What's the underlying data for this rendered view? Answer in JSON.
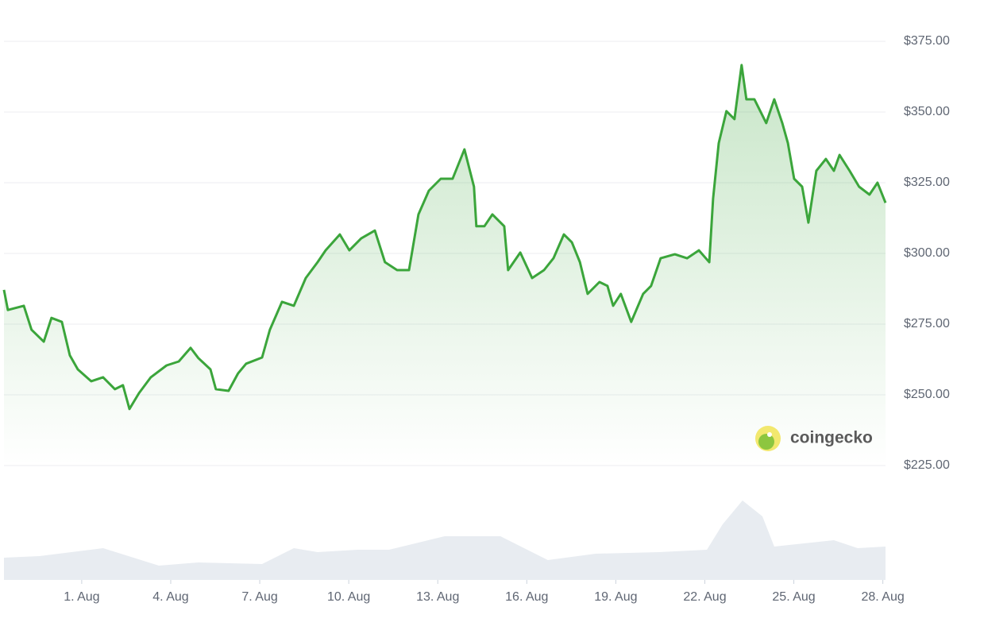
{
  "chart_data": {
    "type": "area",
    "series": [
      {
        "name": "price",
        "color": "#3ba53b",
        "x": [
          -1.62,
          -1.49,
          -0.95,
          -0.69,
          -0.28,
          -0.02,
          0.33,
          0.6,
          0.87,
          1.32,
          1.72,
          2.12,
          2.39,
          2.61,
          2.93,
          3.33,
          3.86,
          4.27,
          4.67,
          4.93,
          5.34,
          5.52,
          5.95,
          6.27,
          6.54,
          7.08,
          7.34,
          7.75,
          8.15,
          8.55,
          8.95,
          9.22,
          9.7,
          10.02,
          10.42,
          10.88,
          11.22,
          11.63,
          12.03,
          12.35,
          12.7,
          13.1,
          13.5,
          13.9,
          14.22,
          14.3,
          14.57,
          14.84,
          15.24,
          15.37,
          15.78,
          16.18,
          16.58,
          16.9,
          17.25,
          17.52,
          17.79,
          18.05,
          18.45,
          18.72,
          18.91,
          19.17,
          19.52,
          19.92,
          20.19,
          20.51,
          20.99,
          21.4,
          21.8,
          22.15,
          22.28,
          22.47,
          22.73,
          23.0,
          23.24,
          23.4,
          23.67,
          24.07,
          24.34,
          24.61,
          24.8,
          25.01,
          25.28,
          25.49,
          25.76,
          26.08,
          26.35,
          26.54,
          26.88,
          27.2,
          27.55,
          27.82,
          28.09
        ],
        "values": [
          287.1,
          280,
          281.5,
          273,
          268.8,
          277.2,
          275.8,
          264,
          259,
          254.8,
          256.2,
          252,
          253.4,
          245,
          250.6,
          256.2,
          260.4,
          261.8,
          266.6,
          263,
          259,
          252,
          251.4,
          257.6,
          261,
          263.2,
          273,
          282.9,
          281.5,
          291.3,
          296.9,
          301.1,
          306.7,
          301.1,
          305.3,
          308.1,
          296.9,
          294.1,
          294.1,
          313.8,
          322.2,
          326.4,
          326.4,
          336.8,
          323.6,
          309.6,
          309.6,
          313.8,
          309.6,
          294.1,
          300.3,
          291.3,
          294.1,
          298.3,
          306.7,
          303.9,
          296.9,
          285.7,
          289.9,
          288.5,
          281.5,
          285.7,
          275.8,
          285.7,
          288.5,
          298.3,
          299.7,
          298.3,
          301.1,
          296.9,
          319.4,
          339,
          350.3,
          347.5,
          366.6,
          354.5,
          354.5,
          346.1,
          354.5,
          346.1,
          339,
          326.4,
          323.6,
          310.9,
          329.2,
          333.4,
          329.2,
          334.8,
          329.2,
          323.6,
          320.8,
          325,
          317.9
        ]
      },
      {
        "name": "volume",
        "color": "#e8ecf1",
        "x": [
          -1.62,
          -0.42,
          1.72,
          3.6,
          4.93,
          7.08,
          8.15,
          8.95,
          10.29,
          11.36,
          13.23,
          15.11,
          16.71,
          18.32,
          20.46,
          22.07,
          22.6,
          23.27,
          23.94,
          24.34,
          26.35,
          27.15,
          28.09
        ],
        "values": [
          28,
          30,
          40,
          18,
          22,
          20,
          40,
          35,
          38,
          38,
          55,
          55,
          25,
          33,
          35,
          38,
          70,
          100,
          80,
          42,
          50,
          40,
          42
        ]
      }
    ],
    "xlim": [
      -1.62,
      28.09
    ],
    "xticks": [
      {
        "value": 1,
        "label": "1. Aug"
      },
      {
        "value": 4,
        "label": "4. Aug"
      },
      {
        "value": 7,
        "label": "7. Aug"
      },
      {
        "value": 10,
        "label": "10. Aug"
      },
      {
        "value": 13,
        "label": "13. Aug"
      },
      {
        "value": 16,
        "label": "16. Aug"
      },
      {
        "value": 19,
        "label": "19. Aug"
      },
      {
        "value": 22,
        "label": "22. Aug"
      },
      {
        "value": 25,
        "label": "25. Aug"
      },
      {
        "value": 28,
        "label": "28. Aug"
      }
    ],
    "ylim": [
      225,
      375
    ],
    "yticks": [
      {
        "value": 375,
        "label": "$375.00"
      },
      {
        "value": 350,
        "label": "$350.00"
      },
      {
        "value": 325,
        "label": "$325.00"
      },
      {
        "value": 300,
        "label": "$300.00"
      },
      {
        "value": 275,
        "label": "$275.00"
      },
      {
        "value": 250,
        "label": "$250.00"
      },
      {
        "value": 225,
        "label": "$225.00"
      }
    ],
    "volume_lim": [
      0,
      100
    ],
    "grid": true,
    "watermark": "coingecko"
  }
}
